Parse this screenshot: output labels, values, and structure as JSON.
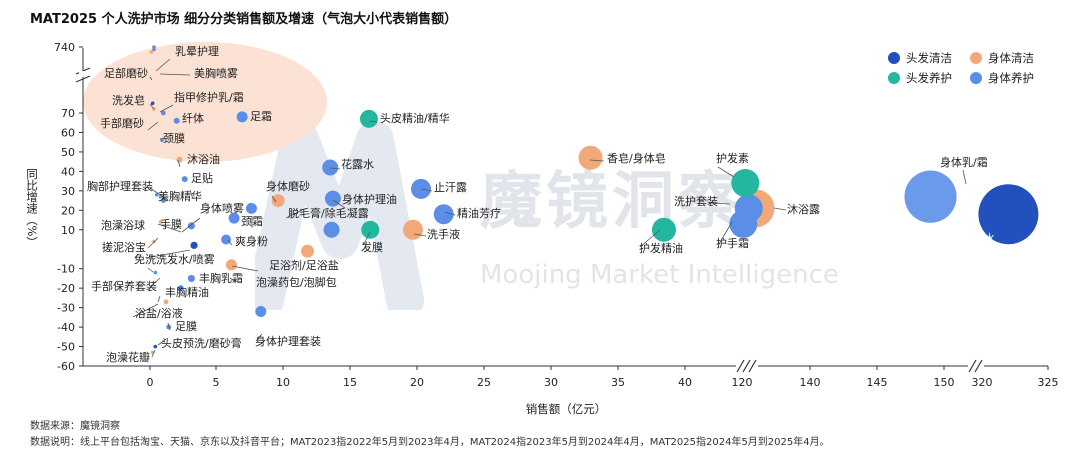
{
  "title": "MAT2025 个人洗护市场 细分分类销售额及增速（气泡大小代表销售额）",
  "footer": {
    "source": "数据来源：魔镜洞察",
    "note": "数据说明：线上平台包括淘宝、天猫、京东以及抖音平台；MAT2023指2022年5月到2023年4月，MAT2024指2023年5月到2024年4月，MAT2025指2024年5月到2025年4月。"
  },
  "watermark": {
    "cn": "魔镜洞察",
    "en": "Moojing Market Intelligence"
  },
  "colors": {
    "头发清洁": "#1f4fc0",
    "身体清洁": "#f2a878",
    "头发养护": "#23b7a0",
    "身体养护": "#5b8ee6",
    "highlight": "#fbe2d4",
    "watermark": "#e2e6ee"
  },
  "legend": [
    {
      "name": "头发清洁",
      "color": "#1f4fc0"
    },
    {
      "name": "身体清洁",
      "color": "#f2a878"
    },
    {
      "name": "头发养护",
      "color": "#23b7a0"
    },
    {
      "name": "身体养护",
      "color": "#5b8ee6"
    }
  ],
  "chart_data": {
    "type": "scatter",
    "title": "MAT2025 个人洗护市场 细分分类销售额及增速（气泡大小代表销售额）",
    "xlabel": "销售额（亿元）",
    "ylabel": "同比增速（%）",
    "x_ticks": [
      "0",
      "5",
      "10",
      "15",
      "20",
      "25",
      "30",
      "35",
      "40",
      "120",
      "140",
      "145",
      "150",
      "320",
      "325"
    ],
    "y_ticks": [
      "740",
      "70",
      "60",
      "50",
      "40",
      "30",
      "20",
      "10",
      "-10",
      "-20",
      "-30",
      "-40",
      "-50",
      "-60"
    ],
    "x_axis_breaks": [
      "40-120",
      "150-320"
    ],
    "y_axis_break": "70-740",
    "legend_position": "top-right",
    "grid": false,
    "series": [
      {
        "name": "头发清洁",
        "points": [
          {
            "label": "洗发水",
            "x": 322,
            "y": 18
          },
          {
            "label": "洗发皂",
            "x": 0.2,
            "y": 75
          },
          {
            "label": "免洗洗发水/喷雾",
            "x": 3.3,
            "y": 2
          },
          {
            "label": "头皮预洗/磨砂膏",
            "x": 0.4,
            "y": -50
          }
        ]
      },
      {
        "name": "身体清洁",
        "points": [
          {
            "label": "沐浴露",
            "x": 122,
            "y": 21
          },
          {
            "label": "香皂/身体皂",
            "x": 33,
            "y": 47
          },
          {
            "label": "洗手液",
            "x": 19.7,
            "y": 10
          },
          {
            "label": "足浴剂/足浴盐",
            "x": 11.8,
            "y": -1
          },
          {
            "label": "泡澡药包/泡脚包",
            "x": 6.1,
            "y": -8
          },
          {
            "label": "身体磨砂",
            "x": 9.6,
            "y": 25
          },
          {
            "label": "沐浴油",
            "x": 2.2,
            "y": 46
          },
          {
            "label": "泡澡浴球",
            "x": 0.8,
            "y": 14
          },
          {
            "label": "搓泥浴宝",
            "x": 0.3,
            "y": 4
          },
          {
            "label": "浴盐/浴液",
            "x": 1.2,
            "y": -27
          },
          {
            "label": "泡澡花瓣",
            "x": 0.2,
            "y": -53
          },
          {
            "label": "手部磨砂",
            "x": 0.3,
            "y": 72
          },
          {
            "label": "足部磨砂",
            "x": 0.1,
            "y": 720
          }
        ]
      },
      {
        "name": "头发养护",
        "points": [
          {
            "label": "头皮精油/精华",
            "x": 16.4,
            "y": 67
          },
          {
            "label": "护发素",
            "x": 120.5,
            "y": 34
          },
          {
            "label": "护发精油",
            "x": 38.5,
            "y": 10
          },
          {
            "label": "发膜",
            "x": 16.5,
            "y": 10
          }
        ]
      },
      {
        "name": "身体养护",
        "points": [
          {
            "label": "身体乳/霜",
            "x": 148,
            "y": 27
          },
          {
            "label": "护手霜",
            "x": 120.2,
            "y": 13
          },
          {
            "label": "洗护套装",
            "x": 121,
            "y": 21
          },
          {
            "label": "止汗露",
            "x": 20.3,
            "y": 31
          },
          {
            "label": "精油芳疗",
            "x": 22,
            "y": 18
          },
          {
            "label": "身体护理油",
            "x": 13.7,
            "y": 26
          },
          {
            "label": "花露水",
            "x": 13.5,
            "y": 42
          },
          {
            "label": "脱毛膏/除毛凝露",
            "x": 13.6,
            "y": 10
          },
          {
            "label": "足霜",
            "x": 6.9,
            "y": 68
          },
          {
            "label": "纤体",
            "x": 2.0,
            "y": 66
          },
          {
            "label": "颈膜",
            "x": 0.9,
            "y": 56
          },
          {
            "label": "足贴",
            "x": 2.6,
            "y": 36
          },
          {
            "label": "美胸精华",
            "x": 1.0,
            "y": 25
          },
          {
            "label": "胸部护理套装",
            "x": 0.5,
            "y": 28
          },
          {
            "label": "身体喷雾",
            "x": 7.6,
            "y": 21
          },
          {
            "label": "颈霜",
            "x": 6.3,
            "y": 16
          },
          {
            "label": "手膜",
            "x": 3.1,
            "y": 12
          },
          {
            "label": "爽身粉",
            "x": 5.7,
            "y": 5
          },
          {
            "label": "丰胸乳霜",
            "x": 3.1,
            "y": -15
          },
          {
            "label": "丰胸精油",
            "x": 2.3,
            "y": -20
          },
          {
            "label": "手部保养套装",
            "x": 0.4,
            "y": -12
          },
          {
            "label": "足膜",
            "x": 1.4,
            "y": -40
          },
          {
            "label": "身体护理套装",
            "x": 8.3,
            "y": -32
          },
          {
            "label": "指甲修护乳/霜",
            "x": 1.0,
            "y": 70
          },
          {
            "label": "乳晕护理",
            "x": 0.3,
            "y": 740
          },
          {
            "label": "美胸喷雾",
            "x": 0.3,
            "y": 730
          }
        ]
      }
    ]
  }
}
